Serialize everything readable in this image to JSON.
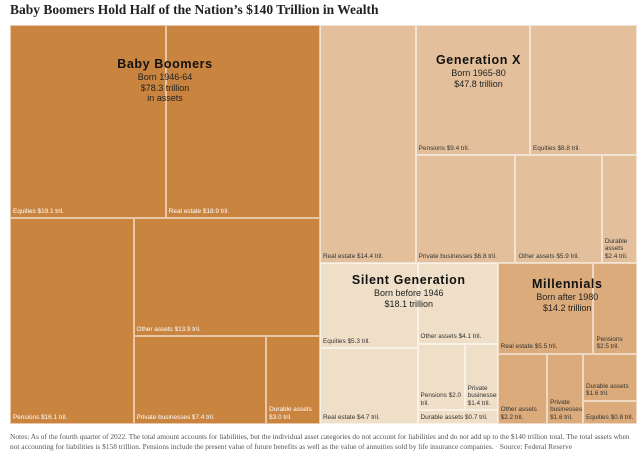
{
  "chart_data": {
    "type": "treemap",
    "title": "Baby Boomers Hold Half of the Nation’s $140 Trillion in Wealth",
    "note": "Notes: As of the fourth quarter of 2022. The total amount accounts for liabilities, but the individual asset categories do not account for liabilities and do not add up to the $140 trillion total. The total assets when not accounting for liabilities is $158 trillion. Pensions include the present value of future benefits as well as the value of annuities sold by life insurance companies.",
    "source": "Source: Federal Reserve",
    "series": [
      {
        "name": "Baby Boomers",
        "subtitle": "Born 1946-64",
        "total": 78.3,
        "total_label": "$78.3 trillion",
        "total_note": "in assets",
        "color": "#c9843f",
        "text_color": "#ffffff",
        "categories": [
          "Equities",
          "Real estate",
          "Other assets",
          "Pensions",
          "Private businesses",
          "Durable assets"
        ],
        "values": [
          19.1,
          18.9,
          13.9,
          16.1,
          7.4,
          3.0
        ],
        "value_labels": [
          "$19.1 tril.",
          "$18.9 tril.",
          "$13.9 tril.",
          "$16.1 tril.",
          "$7.4 tril.",
          "$3.0 tril."
        ]
      },
      {
        "name": "Generation X",
        "subtitle": "Born 1965-80",
        "total": 47.8,
        "total_label": "$47.8 trillion",
        "color": "#e3c09b",
        "text_color": "#333333",
        "categories": [
          "Pensions",
          "Equities",
          "Real estate",
          "Private businesses",
          "Other assets",
          "Durable assets"
        ],
        "values": [
          9.4,
          8.8,
          14.4,
          6.8,
          5.9,
          2.4
        ],
        "value_labels": [
          "$9.4 tril.",
          "$8.8 tril.",
          "$14.4 tril.",
          "$6.8 tril.",
          "$5.9 tril.",
          "$2.4 tril."
        ]
      },
      {
        "name": "Silent Generation",
        "subtitle": "Born before 1946",
        "total": 18.1,
        "total_label": "$18.1 trillion",
        "color": "#efdfc8",
        "text_color": "#333333",
        "categories": [
          "Equities",
          "Other assets",
          "Pensions",
          "Private businesses",
          "Real estate",
          "Durable assets"
        ],
        "values": [
          5.3,
          4.1,
          2.0,
          1.4,
          4.7,
          0.7
        ],
        "value_labels": [
          "$5.3 tril.",
          "$4.1 tril.",
          "$2.0 tril.",
          "$1.4 tril.",
          "$4.7 tril.",
          "$0.7 tril."
        ]
      },
      {
        "name": "Millennials",
        "subtitle": "Born after 1980",
        "total": 14.2,
        "total_label": "$14.2 trillion",
        "color": "#dcab7b",
        "text_color": "#333333",
        "categories": [
          "Real estate",
          "Pensions",
          "Other assets",
          "Private businesses",
          "Durable assets",
          "Equities"
        ],
        "values": [
          5.5,
          2.5,
          2.2,
          1.6,
          1.6,
          0.8
        ],
        "value_labels": [
          "$5.5 tril.",
          "$2.5 tril.",
          "$2.2 tril.",
          "$1.6 tril.",
          "$1.6 tril.",
          "$0.8 tril."
        ]
      }
    ]
  }
}
